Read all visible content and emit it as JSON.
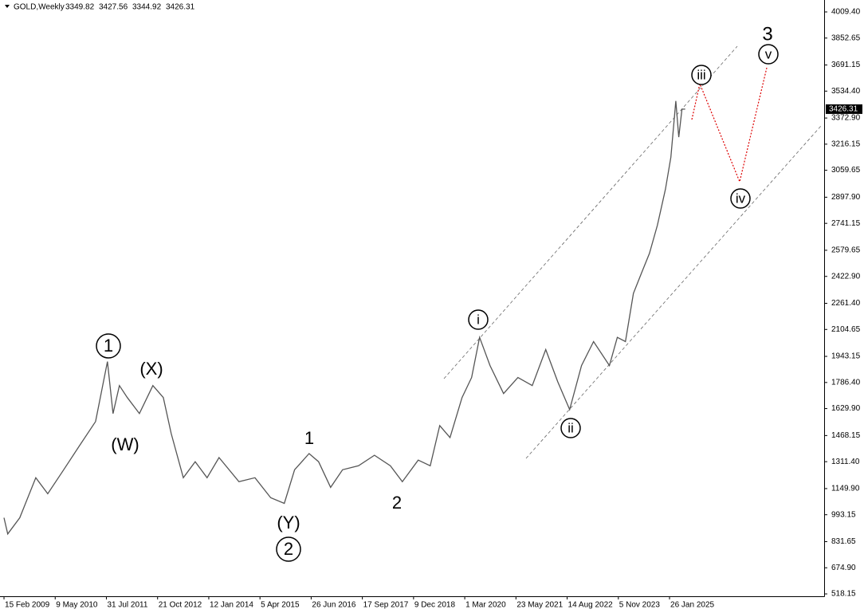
{
  "chart_data": {
    "type": "line",
    "title": "GOLD,Weekly",
    "ohlc": [
      3349.82,
      3427.56,
      3344.92,
      3426.31
    ],
    "series": [
      {
        "name": "GOLD",
        "color": "#555555",
        "x": [
          "2009-02-15",
          "2009-03-20",
          "2009-07-03",
          "2009-11-20",
          "2010-03-05",
          "2010-07-22",
          "2010-12-08",
          "2011-04-27",
          "2011-08-09",
          "2011-09-27",
          "2011-11-22",
          "2012-01-30",
          "2012-05-15",
          "2012-09-10",
          "2012-12-10",
          "2013-02-17",
          "2013-06-03",
          "2013-09-15",
          "2013-12-28",
          "2014-04-12",
          "2014-10-03",
          "2015-02-20",
          "2015-07-08",
          "2015-11-04",
          "2016-02-02",
          "2016-06-08",
          "2016-08-30",
          "2016-12-13",
          "2017-03-28",
          "2017-08-14",
          "2018-01-01",
          "2018-05-20",
          "2018-09-02",
          "2019-01-19",
          "2019-05-04",
          "2019-07-26",
          "2019-10-24",
          "2020-02-06",
          "2020-04-30",
          "2020-07-09",
          "2020-10-08",
          "2021-02-04",
          "2021-06-09",
          "2021-10-13",
          "2022-02-08",
          "2022-05-23",
          "2022-09-05",
          "2022-12-18",
          "2023-04-02",
          "2023-08-19",
          "2023-10-27",
          "2024-01-06",
          "2024-03-16",
          "2024-05-25",
          "2024-08-03",
          "2024-10-12",
          "2024-12-21",
          "2025-02-07",
          "2025-03-22",
          "2025-04-17",
          "2025-05-15",
          "2025-06-12"
        ],
        "values": [
          975,
          878,
          975,
          1215,
          1119,
          1263,
          1408,
          1552,
          1912,
          1600,
          1768,
          1696,
          1600,
          1768,
          1696,
          1480,
          1215,
          1311,
          1215,
          1336,
          1191,
          1215,
          1095,
          1061,
          1263,
          1360,
          1311,
          1157,
          1263,
          1287,
          1350,
          1287,
          1191,
          1321,
          1287,
          1528,
          1456,
          1696,
          1816,
          2057,
          1888,
          1720,
          1816,
          1768,
          1984,
          1792,
          1624,
          1888,
          2032,
          1888,
          2057,
          2032,
          2321,
          2441,
          2561,
          2730,
          2946,
          3138,
          3475,
          3258,
          3426,
          3426.31
        ]
      }
    ],
    "xlim": [
      "2009-01-11",
      "2028-10-10"
    ],
    "xticks": [
      {
        "value": "2009-02-15",
        "label": "15 Feb 2009"
      },
      {
        "value": "2010-05-09",
        "label": "9 May 2010"
      },
      {
        "value": "2011-07-31",
        "label": "31 Jul 2011"
      },
      {
        "value": "2012-10-21",
        "label": "21 Oct 2012"
      },
      {
        "value": "2014-01-12",
        "label": "12 Jan 2014"
      },
      {
        "value": "2015-04-05",
        "label": "5 Apr 2015"
      },
      {
        "value": "2016-06-26",
        "label": "26 Jun 2016"
      },
      {
        "value": "2017-09-17",
        "label": "17 Sep 2017"
      },
      {
        "value": "2018-12-09",
        "label": "9 Dec 2018"
      },
      {
        "value": "2020-03-01",
        "label": "1 Mar 2020"
      },
      {
        "value": "2021-05-23",
        "label": "23 May 2021"
      },
      {
        "value": "2022-08-14",
        "label": "14 Aug 2022"
      },
      {
        "value": "2023-11-05",
        "label": "5 Nov 2023"
      },
      {
        "value": "2025-01-26",
        "label": "26 Jan 2025"
      }
    ],
    "ylim": [
      504,
      4081
    ],
    "yticks": [
      518.15,
      {
        "value": 674.9,
        "label": "674.90"
      },
      {
        "value": 831.65,
        "label": "831.65"
      },
      993.15,
      {
        "value": 1149.9,
        "label": "1149.90"
      },
      {
        "value": 1311.4,
        "label": "1311.40"
      },
      1468.15,
      {
        "value": 1629.9,
        "label": "1629.90"
      },
      {
        "value": 1786.4,
        "label": "1786.40"
      },
      1943.15,
      2104.65,
      {
        "value": 2261.4,
        "label": "2261.40"
      },
      {
        "value": 2422.9,
        "label": "2422.90"
      },
      2579.65,
      2741.15,
      {
        "value": 2897.9,
        "label": "2897.90"
      },
      3059.65,
      3216.15,
      {
        "value": 3372.9,
        "label": "3372.90"
      },
      {
        "value": 3534.4,
        "label": "3534.40"
      },
      3691.15,
      3852.65,
      {
        "value": 4009.4,
        "label": "4009.40"
      }
    ],
    "annotations": [
      "1",
      "(X)",
      "(W)",
      "1",
      "(Y)",
      "2",
      "2",
      "i",
      "ii",
      "iii",
      "iv",
      "v",
      "3"
    ]
  }
}
